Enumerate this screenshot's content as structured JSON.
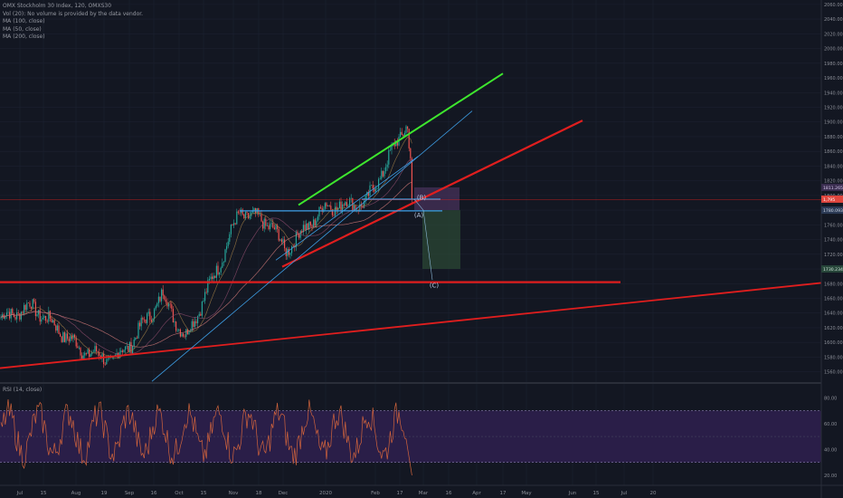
{
  "legend": {
    "title": "OMX Stockholm 30 Index, 120, OMXS30",
    "volume_note": "Vol (20): No volume is provided by the data vendor.",
    "ma1": "MA (100, close)",
    "ma2": "MA (50, close)",
    "ma3": "MA (200, close)"
  },
  "rsi_legend": "RSI (14, close)",
  "wave_labels": {
    "b": "(B)",
    "a": "(A)",
    "c": "(C)"
  },
  "colors": {
    "background": "#131722",
    "candle_up": "#26a69a",
    "candle_down": "#ef5350",
    "trend_red": "#e01e1e",
    "trend_green": "#3ee62e",
    "trend_blue": "#3d9fe6",
    "rsi_band": "#2e1f4d",
    "rsi_line": "#d2643c"
  },
  "chart_data": [
    {
      "type": "candlestick",
      "title": "OMX Stockholm 30 Index, 120, OMXS30",
      "xlabel": "",
      "ylabel": "",
      "x_ticks": [
        "Jul",
        "15",
        "Aug",
        "19",
        "Sep",
        "16",
        "Oct",
        "15",
        "Nov",
        "18",
        "Dec",
        "2020",
        "Feb",
        "17",
        "Mar",
        "16",
        "Apr",
        "17",
        "May",
        "Jun",
        "15",
        "Jul",
        "20"
      ],
      "y_ticks": [
        1560,
        1580,
        1600,
        1620,
        1640,
        1660,
        1680,
        1700,
        1720,
        1740,
        1760,
        1780,
        1800,
        1820,
        1840,
        1860,
        1880,
        1900,
        1920,
        1940,
        1960,
        1980,
        2000,
        2020,
        2040,
        2060
      ],
      "y_tick_labels": [
        "1560.0000",
        "1580.0000",
        "1600.0000",
        "1620.0000",
        "1640.0000",
        "1660.0000",
        "1680.0000",
        "1700.0000",
        "1720.0000",
        "1740.0000",
        "1760.0000",
        "1780.0000",
        "1800.0000",
        "1820.0000",
        "1840.0000",
        "1860.0000",
        "1880.0000",
        "1900.0000",
        "1920.0000",
        "1940.0000",
        "1960.0000",
        "1980.0000",
        "2000.0000",
        "2020.0000",
        "2040.0000",
        "2060.0000"
      ],
      "ylim": [
        1546,
        2066
      ],
      "price_path": [
        {
          "period": "Jul",
          "close": 1632
        },
        {
          "period": "15",
          "close": 1650
        },
        {
          "period": "Aug",
          "close": 1590
        },
        {
          "period": "19",
          "close": 1575
        },
        {
          "period": "Sep",
          "close": 1600
        },
        {
          "period": "16",
          "close": 1665
        },
        {
          "period": "Oct",
          "close": 1605
        },
        {
          "period": "15",
          "close": 1700
        },
        {
          "period": "Nov",
          "close": 1778
        },
        {
          "period": "18",
          "close": 1760
        },
        {
          "period": "Dec",
          "close": 1725
        },
        {
          "period": "2020",
          "close": 1785
        },
        {
          "period": "Feb",
          "close": 1790
        },
        {
          "period": "17",
          "close": 1900
        },
        {
          "period": "Mar",
          "close": 1795
        }
      ],
      "price_labels": [
        "1,795",
        "1811.265",
        "1780.0935",
        "1730.234"
      ],
      "horizontal_lines": [
        1794,
        1682
      ],
      "annotations": [
        "(B)",
        "(A)",
        "(C)"
      ]
    },
    {
      "type": "line",
      "title": "RSI (14, close)",
      "y_ticks": [
        20,
        40,
        60,
        80
      ],
      "y_tick_labels": [
        "20.00",
        "40.00",
        "60.00",
        "80.00"
      ],
      "ylim": [
        15,
        90
      ],
      "band": [
        30,
        70
      ],
      "final_value": 22
    }
  ]
}
